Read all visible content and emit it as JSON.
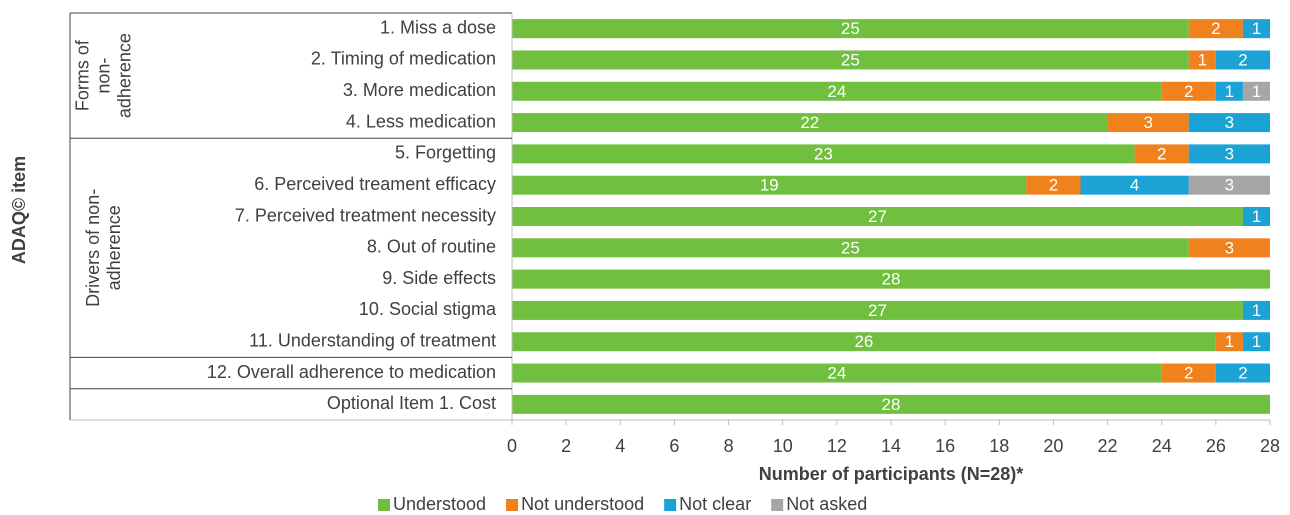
{
  "chart_data": {
    "type": "stacked-bar-horizontal",
    "y_axis_label": "ADAQ© item",
    "x_axis_label": "Number of participants (N=28)*",
    "categories": [
      "1. Miss a dose",
      "2. Timing of medication",
      "3. More medication",
      "4. Less medication",
      "5. Forgetting",
      "6. Perceived treament efficacy",
      "7. Perceived treatment necessity",
      "8. Out of routine",
      "9. Side effects",
      "10. Social stigma",
      "11. Understanding of treatment",
      "12. Overall adherence to medication",
      "Optional Item 1. Cost"
    ],
    "groups": [
      {
        "lines": [
          "Forms of",
          "non-",
          "adherence"
        ],
        "start": 0,
        "end": 3
      },
      {
        "lines": [
          "Drivers of non-",
          "adherence"
        ],
        "start": 4,
        "end": 10
      }
    ],
    "series": [
      {
        "name": "Understood",
        "color": "#70bf3e",
        "values": [
          25,
          25,
          24,
          22,
          23,
          19,
          27,
          25,
          28,
          27,
          26,
          24,
          28
        ]
      },
      {
        "name": "Not understood",
        "color": "#f0821e",
        "values": [
          2,
          1,
          2,
          3,
          2,
          2,
          null,
          3,
          null,
          null,
          1,
          2,
          null
        ]
      },
      {
        "name": "Not clear",
        "color": "#1ba3d6",
        "values": [
          1,
          2,
          1,
          3,
          3,
          4,
          1,
          null,
          null,
          1,
          1,
          2,
          null
        ]
      },
      {
        "name": "Not asked",
        "color": "#a6a6a6",
        "values": [
          null,
          null,
          1,
          null,
          null,
          3,
          null,
          null,
          null,
          null,
          null,
          null,
          null
        ]
      }
    ],
    "xlim": [
      0,
      28
    ],
    "xticks": [
      0,
      2,
      4,
      6,
      8,
      10,
      12,
      14,
      16,
      18,
      20,
      22,
      24,
      26,
      28
    ],
    "legend": "bottom"
  }
}
